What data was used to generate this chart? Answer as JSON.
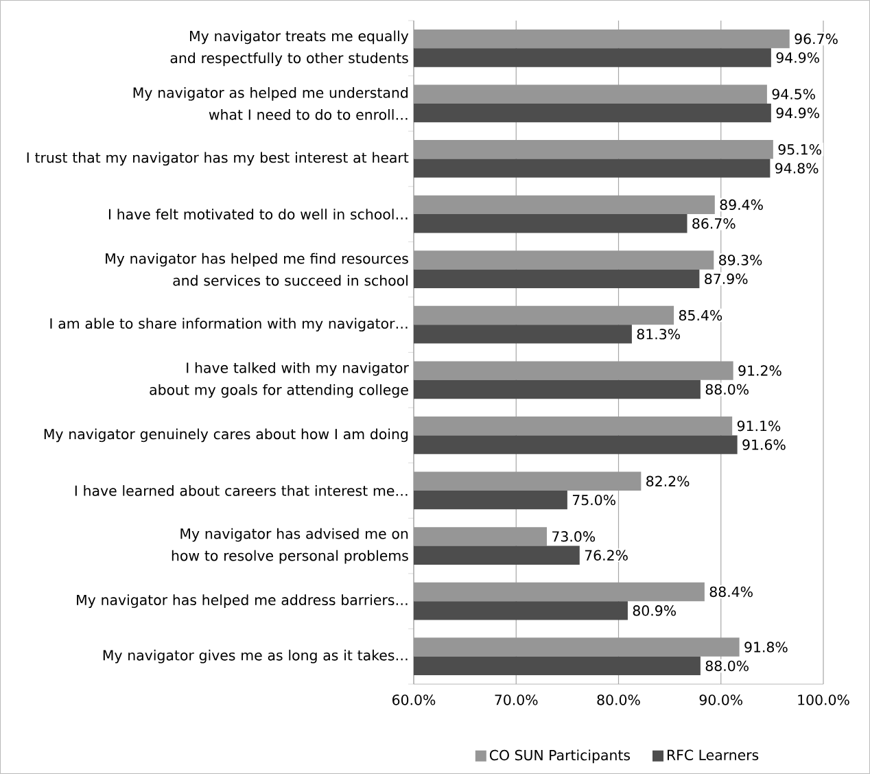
{
  "chart_data": {
    "type": "bar",
    "orientation": "horizontal",
    "categories": [
      "My navigator treats me equally and respectfully to other students",
      "My navigator as helped me understand what I need to do to enroll…",
      "I trust that my navigator has my best interest at heart",
      "I have felt motivated to do well in school…",
      "My navigator has helped me find resources and services to succeed in school",
      "I am able to share information with my navigator…",
      "I have talked with my navigator about my goals for attending college",
      "My navigator genuinely cares about how I am doing",
      "I have learned about careers that interest me…",
      "My navigator has advised me on how to resolve personal problems",
      "My navigator has helped me address barriers…",
      "My navigator gives me as long as it takes…"
    ],
    "series": [
      {
        "name": "CO SUN Participants",
        "color": "#969696",
        "values": [
          96.7,
          94.5,
          95.1,
          89.4,
          89.3,
          85.4,
          91.2,
          91.1,
          82.2,
          73.0,
          88.4,
          91.8
        ],
        "value_labels": [
          "96.7%",
          "94.5%",
          "95.1%",
          "89.4%",
          "89.3%",
          "85.4%",
          "91.2%",
          "91.1%",
          "82.2%",
          "73.0%",
          "88.4%",
          "91.8%"
        ]
      },
      {
        "name": "RFC Learners",
        "color": "#4d4d4d",
        "values": [
          94.9,
          94.9,
          94.8,
          86.7,
          87.9,
          81.3,
          88.0,
          91.6,
          75.0,
          76.2,
          80.9,
          88.0
        ],
        "value_labels": [
          "94.9%",
          "94.9%",
          "94.8%",
          "86.7%",
          "87.9%",
          "81.3%",
          "88.0%",
          "91.6%",
          "75.0%",
          "76.2%",
          "80.9%",
          "88.0%"
        ]
      }
    ],
    "xlim": [
      60,
      100
    ],
    "xticks": [
      {
        "value": 60,
        "label": "60.0%"
      },
      {
        "value": 70,
        "label": "70.0%"
      },
      {
        "value": 80,
        "label": "80.0%"
      },
      {
        "value": 90,
        "label": "90.0%"
      },
      {
        "value": 100,
        "label": "100.0%"
      }
    ],
    "grid": "x",
    "legend": "bottom"
  }
}
